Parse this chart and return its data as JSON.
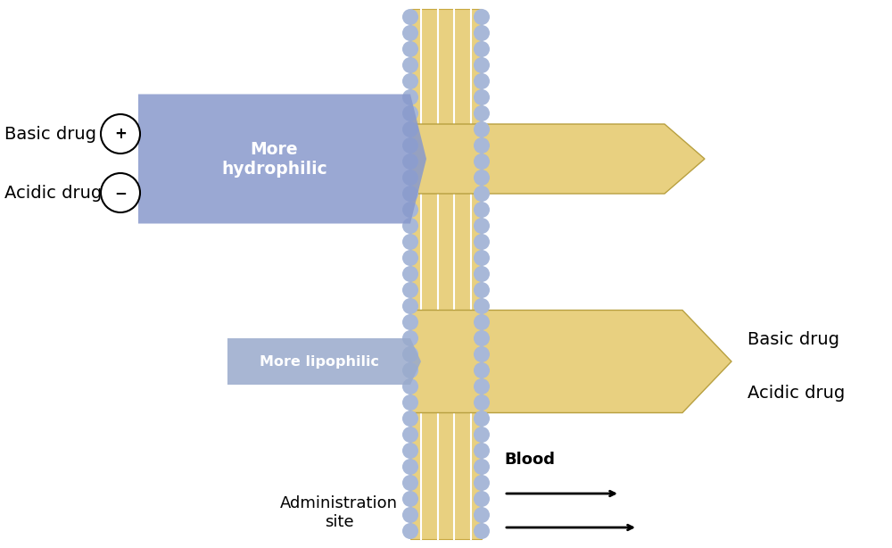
{
  "bg_color": "#ffffff",
  "membrane_color_bg": "#e8d080",
  "membrane_dot_color": "#a8b8d8",
  "membrane_stripe_color": "#ffffff",
  "membrane_edge_color": "#c8a840",
  "hydrophilic_color": "#8899cc",
  "lipophilic_color": "#99aacc",
  "drug_arrow_color": "#e8d080",
  "drug_arrow_edge": "#b8a040",
  "hydrophilic_label": "More\nhydrophilic",
  "lipophilic_label": "More lipophilic",
  "basic_drug_left": "Basic drug",
  "acidic_drug_left": "Acidic drug",
  "basic_drug_right": "Basic drug",
  "acidic_drug_right": "Acidic drug",
  "admin_label": "Administration\nsite",
  "blood_label": "Blood"
}
